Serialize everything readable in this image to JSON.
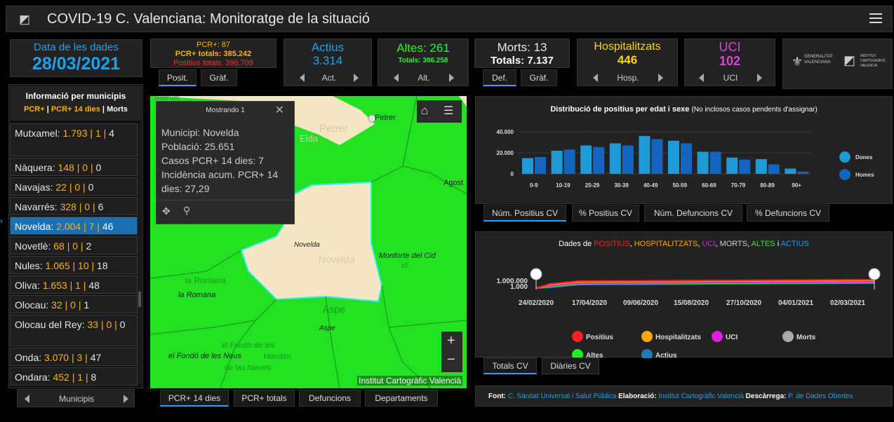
{
  "header": {
    "title": "COVID-19 C. Valenciana: Monitoratge de la situació"
  },
  "date_card": {
    "label": "Data de les dades",
    "value": "28/03/2021"
  },
  "pcr_card": {
    "line1": "PCR+: 87",
    "line2": "PCR+ totals: 385.242",
    "line3": "Positius totals: 396.709",
    "tab1": "Posit.",
    "tab2": "Gràf."
  },
  "actius_card": {
    "label": "Actius",
    "value": "3.314",
    "nav": "Act."
  },
  "altes_card": {
    "label": "Altes: 261",
    "total": "Totals: 386.258",
    "nav": "Alt."
  },
  "morts_card": {
    "label": "Morts: 13",
    "total": "Totals: 7.137",
    "tab1": "Def.",
    "tab2": "Gràf."
  },
  "hosp_card": {
    "label": "Hospitalitzats",
    "value": "446",
    "nav": "Hosp."
  },
  "uci_card": {
    "label": "UCI",
    "value": "102",
    "nav": "UCI"
  },
  "logos": {
    "gva": "GENERALITAT VALENCIANA",
    "icv": "INSTITUT CARTOGRÀFIC VALENCIÀ"
  },
  "muni_panel": {
    "title": "Informació per municipis",
    "legend_a": "PCR+",
    "legend_sep": " | ",
    "legend_b": "PCR+ 14 dies",
    "legend_c": "Morts",
    "rows": [
      {
        "name": "Mutxamel:",
        "a": "1.793",
        "b": "1",
        "c": "4"
      },
      {
        "name": "Nàquera:",
        "a": "148",
        "b": "0",
        "c": "0"
      },
      {
        "name": "Navajas:",
        "a": "22",
        "b": "0",
        "c": "0"
      },
      {
        "name": "Navarrés:",
        "a": "328",
        "b": "0",
        "c": "6"
      },
      {
        "name": "Novelda:",
        "a": "2.004",
        "b": "7",
        "c": "46"
      },
      {
        "name": "Novetlè:",
        "a": "68",
        "b": "0",
        "c": "2"
      },
      {
        "name": "Nules:",
        "a": "1.065",
        "b": "10",
        "c": "18"
      },
      {
        "name": "Oliva:",
        "a": "1.653",
        "b": "1",
        "c": "48"
      },
      {
        "name": "Olocau:",
        "a": "32",
        "b": "0",
        "c": "1"
      },
      {
        "name": "Olocau del Rey:",
        "a": "33",
        "b": "0",
        "c": "0"
      },
      {
        "name": "Onda:",
        "a": "3.070",
        "b": "3",
        "c": "47"
      },
      {
        "name": "Ondara:",
        "a": "452",
        "b": "1",
        "c": "8"
      }
    ],
    "nav": "Municipis"
  },
  "popup": {
    "title": "Mostrando 1",
    "l1": "Municipi: Novelda",
    "l2": "Població: 25.651",
    "l3": "Casos PCR+ 14 dies: 7",
    "l4": "Incidència acum. PCR+ 14",
    "l5": "dies: 27,29"
  },
  "map": {
    "places": {
      "petrer1": "Petrer",
      "petrer2": "Petrer",
      "elda": "Elda",
      "agost": "Agost",
      "novelda1": "Novelda",
      "novelda2": "Novelda",
      "monforte1": "Monforte del Cid",
      "monforte2": "id",
      "romana1": "la Romana",
      "romana2": "la Romana",
      "aspe1": "Aspe",
      "aspe2": "Aspe",
      "fondo1": "el Fondó de les Neus",
      "fondo2": "el Fondó de les",
      "fondo3": "Hondón",
      "fondo4": "de las Nieves",
      "salinas": "Salinas"
    },
    "attribution": "Institut Cartogràfic Valencià",
    "zoom_in": "+",
    "zoom_out": "−",
    "tabs": [
      "PCR+ 14 dies",
      "PCR+ totals",
      "Defuncions",
      "Departaments"
    ]
  },
  "age_chart": {
    "title": "Distribució de positius per edat i sexe",
    "subtitle": "(No inclosos casos pendents d'assignar)",
    "tabs": [
      "Núm. Positius CV",
      "% Positius CV",
      "Núm. Defuncions CV",
      "% Defuncions CV"
    ]
  },
  "time_chart": {
    "title_prefix": "Dades de ",
    "t1": "POSITIUS",
    "t2": "HOSPITALITZATS",
    "t3": "UCI",
    "t4": "MORTS",
    "t5": "ALTES",
    "and": " i ",
    "t6": "ACTIUS",
    "tabs": [
      "Totals CV",
      "Diàries CV"
    ]
  },
  "footer": {
    "font_label": "Font:",
    "font_value": "C. Sanitat Universal i Salut Pública",
    "elab_label": "Elaboració:",
    "elab_value": "Institut Cartogràfic Valencià",
    "desc_label": "Descàrrega:",
    "desc_value": "P. de Dades Obertes"
  },
  "chart_data": [
    {
      "type": "bar",
      "title": "Distribució de positius per edat i sexe",
      "subtitle": "(No inclosos casos pendents d'assignar)",
      "categories": [
        "0-9",
        "10-19",
        "20-29",
        "30-39",
        "40-49",
        "50-59",
        "60-69",
        "70-79",
        "80-89",
        "90+"
      ],
      "tick_labels": [
        "0-9",
        "10-19",
        "20-29",
        "30-39",
        "40-49",
        "50-59",
        "60-69",
        "70-79",
        "80-89",
        "90+"
      ],
      "series": [
        {
          "name": "Dones",
          "color": "#1e9ad6",
          "values": [
            15000,
            22000,
            27000,
            29000,
            36000,
            31500,
            21000,
            15500,
            14000,
            5000
          ]
        },
        {
          "name": "Homes",
          "color": "#1565c0",
          "values": [
            16000,
            23000,
            25500,
            27000,
            33000,
            29000,
            21000,
            13500,
            9000,
            2000
          ]
        }
      ],
      "y_ticks": [
        "40.000",
        "20.000",
        "0"
      ],
      "ylim": [
        0,
        40000
      ]
    },
    {
      "type": "line",
      "x_ticks": [
        "24/02/2020",
        "17/04/2020",
        "09/06/2020",
        "15/08/2020",
        "27/10/2020",
        "04/01/2021",
        "02/03/2021"
      ],
      "y_ticks": [
        "1.000.000",
        "1.000"
      ],
      "series": [
        {
          "name": "Positius",
          "color": "#ff2020"
        },
        {
          "name": "Hospitalitzats",
          "color": "#ffa500"
        },
        {
          "name": "UCI",
          "color": "#e020e0"
        },
        {
          "name": "Morts",
          "color": "#aaaaaa"
        },
        {
          "name": "Altes",
          "color": "#22ee22"
        },
        {
          "name": "Actius",
          "color": "#1a7fb0"
        }
      ]
    }
  ]
}
